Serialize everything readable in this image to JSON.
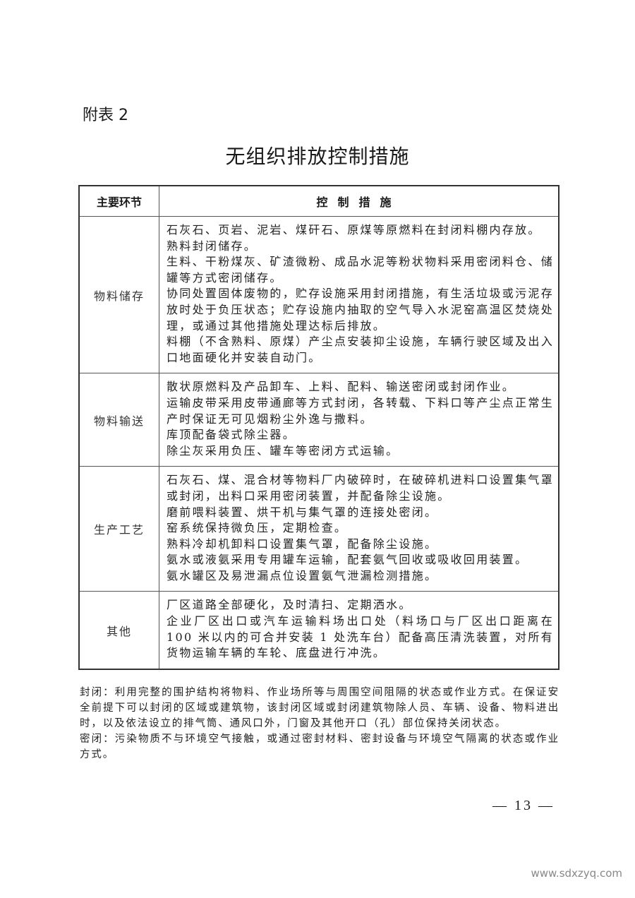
{
  "annex_label": "附表 2",
  "title": "无组织排放控制措施",
  "table": {
    "headers": [
      "主要环节",
      "控制措施"
    ],
    "rows": [
      {
        "section": "物料储存",
        "items": [
          "石灰石、页岩、泥岩、煤矸石、原煤等原燃料在封闭料棚内存放。",
          "熟料封闭储存。",
          "生料、干粉煤灰、矿渣微粉、成品水泥等粉状物料采用密闭料仓、储罐等方式密闭储存。",
          "协同处置固体废物的，贮存设施采用封闭措施，有生活垃圾或污泥存放时处于负压状态；贮存设施内抽取的空气导入水泥窑高温区焚烧处理，或通过其他措施处理达标后排放。",
          "料棚（不含熟料、原煤）产尘点安装抑尘设施，车辆行驶区域及出入口地面硬化并安装自动门。"
        ]
      },
      {
        "section": "物料输送",
        "items": [
          "散状原燃料及产品卸车、上料、配料、输送密闭或封闭作业。",
          "运输皮带采用皮带通廊等方式封闭，各转载、下料口等产尘点正常生产时保证无可见烟粉尘外逸与撒料。",
          "库顶配备袋式除尘器。",
          "除尘灰采用负压、罐车等密闭方式运输。"
        ]
      },
      {
        "section": "生产工艺",
        "items": [
          "石灰石、煤、混合材等物料厂内破碎时，在破碎机进料口设置集气罩或封闭，出料口采用密闭装置，并配备除尘设施。",
          "磨前喂料装置、烘干机与集气罩的连接处密闭。",
          "窑系统保持微负压，定期检查。",
          "熟料冷却机卸料口设置集气罩，配备除尘设施。",
          "氨水或液氨采用专用罐车运输，配套氨气回收或吸收回用装置。",
          "氨水罐区及易泄漏点位设置氨气泄漏检测措施。"
        ]
      },
      {
        "section": "其他",
        "items": [
          "厂区道路全部硬化，及时清扫、定期洒水。",
          "企业厂区出口或汽车运输料场出口处（料场口与厂区出口距离在 100 米以内的可合并安装 1 处洗车台）配备高压清洗装置，对所有货物运输车辆的车轮、底盘进行冲洗。"
        ]
      }
    ]
  },
  "notes": [
    "封闭：利用完整的围护结构将物料、作业场所等与周围空间阻隔的状态或作业方式。在保证安全前提下可以封闭的区域或建筑物，该封闭区域或封闭建筑物除人员、车辆、设备、物料进出时，以及依法设立的排气筒、通风口外，门窗及其他开口（孔）部位保持关闭状态。",
    "密闭：污染物质不与环境空气接触，或通过密封材料、密封设备与环境空气隔离的状态或作业方式。"
  ],
  "page_number": "— 13 —",
  "watermark": "www.sdxzyq.com"
}
